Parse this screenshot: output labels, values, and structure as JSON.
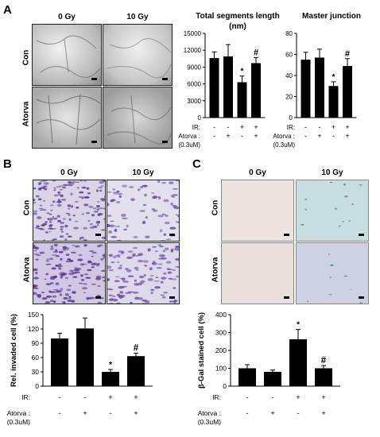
{
  "panels": {
    "A": {
      "letter": "A",
      "col_labels": [
        "0 Gy",
        "10 Gy"
      ],
      "row_labels": [
        "Con",
        "Atorva"
      ]
    },
    "B": {
      "letter": "B",
      "col_labels": [
        "0 Gy",
        "10 Gy"
      ],
      "row_labels": [
        "Con",
        "Atorva"
      ]
    },
    "C": {
      "letter": "C",
      "col_labels": [
        "0 Gy",
        "10 Gy"
      ],
      "row_labels": [
        "Con",
        "Atorva"
      ]
    }
  },
  "conditions": {
    "ir_label": "IR:",
    "atorva_label_1": "Atorva :",
    "atorva_label_2": "(0.3uM)",
    "ir": [
      "-",
      "-",
      "+",
      "+"
    ],
    "atorva": [
      "-",
      "+",
      "-",
      "+"
    ]
  },
  "chart_data": [
    {
      "id": "total_segments",
      "type": "bar",
      "title": "Total segments length (nm)",
      "ylim": [
        0,
        15000
      ],
      "yticks": [
        0,
        3000,
        6000,
        9000,
        12000,
        15000
      ],
      "values": [
        10600,
        10900,
        6300,
        9700
      ],
      "errors": [
        1100,
        2100,
        1100,
        1000
      ],
      "markers": [
        "",
        "",
        "*",
        "#"
      ]
    },
    {
      "id": "master_junction",
      "type": "bar",
      "title": "Master junction",
      "ylim": [
        0,
        80
      ],
      "yticks": [
        0,
        20,
        40,
        60,
        80
      ],
      "values": [
        55,
        57,
        30,
        49
      ],
      "errors": [
        7,
        8,
        4,
        7
      ],
      "markers": [
        "",
        "",
        "*",
        "#"
      ]
    },
    {
      "id": "invaded_cells",
      "type": "bar",
      "ylabel": "Rel. invaded cell (%)",
      "ylim": [
        0,
        150
      ],
      "yticks": [
        0,
        30,
        60,
        90,
        120,
        150
      ],
      "values": [
        100,
        121,
        30,
        63
      ],
      "errors": [
        11,
        22,
        5,
        6
      ],
      "markers": [
        "",
        "",
        "*",
        "#"
      ]
    },
    {
      "id": "beta_gal",
      "type": "bar",
      "ylabel": "β-Gal stained cell (%)",
      "ylim": [
        0,
        400
      ],
      "yticks": [
        0,
        100,
        200,
        300,
        400
      ],
      "values": [
        100,
        80,
        262,
        100
      ],
      "errors": [
        20,
        10,
        55,
        15
      ],
      "markers": [
        "",
        "",
        "*",
        "#"
      ]
    }
  ]
}
